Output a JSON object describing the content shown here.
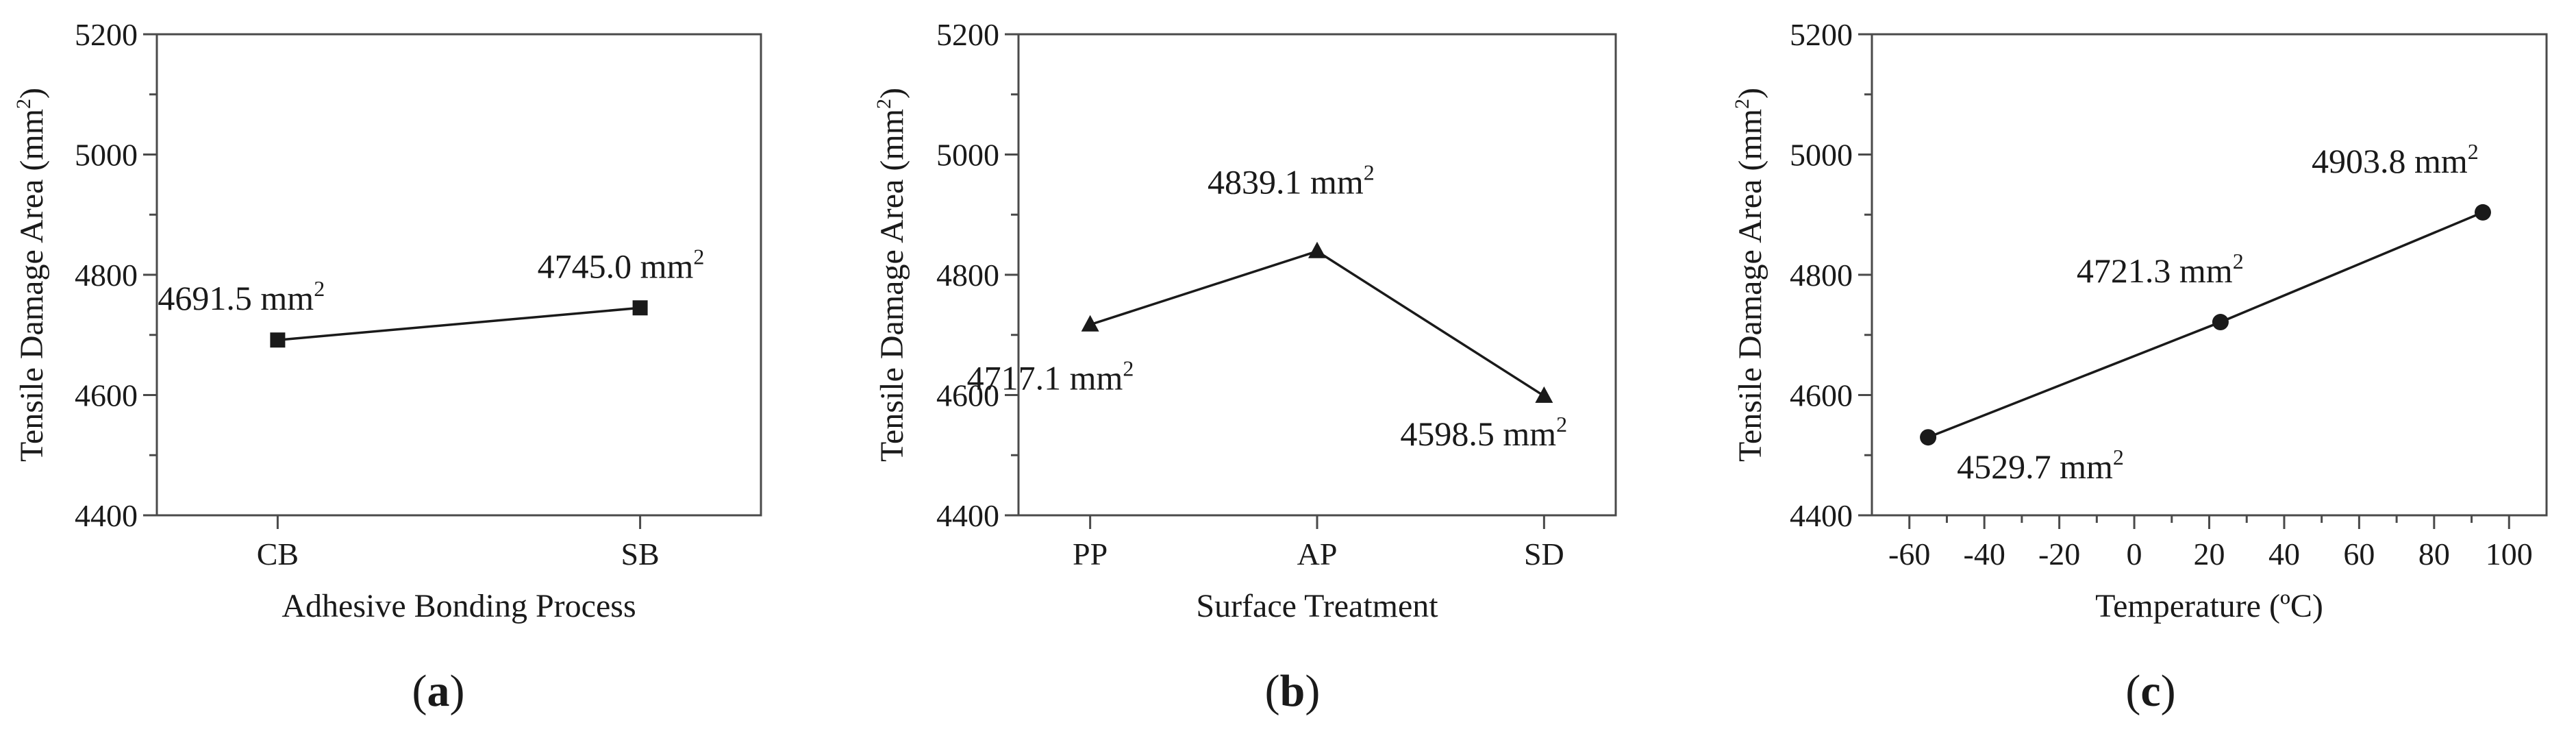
{
  "chart_data": [
    {
      "type": "line",
      "title": "",
      "xlabel": "Adhesive Bonding Process",
      "ylabel": "Tensile Damage Area (mm²)",
      "ylabel_parts": [
        "Tensile Damage Area (mm",
        "2",
        ")"
      ],
      "ylim": [
        4400,
        5200
      ],
      "yticks": [
        4400,
        4600,
        4800,
        5000,
        5200
      ],
      "ytick_labels": [
        "4400",
        "4600",
        "4800",
        "5000",
        "5200"
      ],
      "x_is_categorical": true,
      "categories": [
        "CB",
        "SB"
      ],
      "xticks": [],
      "xtick_labels": [],
      "marker": "square",
      "series": [
        {
          "name": "Tensile Damage Area",
          "values": [
            4691.5,
            4745.0
          ],
          "labels": [
            "4691.5 mm",
            "4745.0 mm"
          ],
          "label_units_superscript": [
            "2",
            "2"
          ]
        }
      ],
      "panel_label": {
        "open": "(",
        "letter": "a",
        "close": ")"
      }
    },
    {
      "type": "line",
      "title": "",
      "xlabel": "Surface Treatment",
      "ylabel": "Tensile Damage Area (mm²)",
      "ylabel_parts": [
        "Tensile Damage Area (mm",
        "2",
        ")"
      ],
      "ylim": [
        4400,
        5200
      ],
      "yticks": [
        4400,
        4600,
        4800,
        5000,
        5200
      ],
      "ytick_labels": [
        "4400",
        "4600",
        "4800",
        "5000",
        "5200"
      ],
      "x_is_categorical": true,
      "categories": [
        "PP",
        "AP",
        "SD"
      ],
      "xticks": [],
      "xtick_labels": [],
      "marker": "triangle",
      "series": [
        {
          "name": "Tensile Damage Area",
          "values": [
            4717.1,
            4839.1,
            4598.5
          ],
          "labels": [
            "4717.1 mm",
            "4839.1 mm",
            "4598.5 mm"
          ],
          "label_units_superscript": [
            "2",
            "2",
            "2"
          ]
        }
      ],
      "panel_label": {
        "open": "(",
        "letter": "b",
        "close": ")"
      }
    },
    {
      "type": "line",
      "title": "",
      "xlabel": "Temperature (ºC)",
      "ylabel": "Tensile Damage Area (mm²)",
      "ylabel_parts": [
        "Tensile Damage Area (mm",
        "2",
        ")"
      ],
      "ylim": [
        4400,
        5200
      ],
      "yticks": [
        4400,
        4600,
        4800,
        5000,
        5200
      ],
      "ytick_labels": [
        "4400",
        "4600",
        "4800",
        "5000",
        "5200"
      ],
      "x_is_categorical": false,
      "xlim": [
        -70,
        110
      ],
      "categories": [],
      "xticks": [
        -60,
        -40,
        -20,
        0,
        20,
        40,
        60,
        80,
        100
      ],
      "xtick_labels": [
        "-60",
        "-40",
        "-20",
        "0",
        "20",
        "40",
        "60",
        "80",
        "100"
      ],
      "marker": "circle",
      "series": [
        {
          "name": "Tensile Damage Area",
          "x": [
            -55,
            23,
            93
          ],
          "values": [
            4529.7,
            4721.3,
            4903.8
          ],
          "labels": [
            "4529.7 mm",
            "4721.3 mm",
            "4903.8 mm"
          ],
          "label_units_superscript": [
            "2",
            "2",
            "2"
          ]
        }
      ],
      "panel_label": {
        "open": "(",
        "letter": "c",
        "close": ")"
      }
    }
  ]
}
